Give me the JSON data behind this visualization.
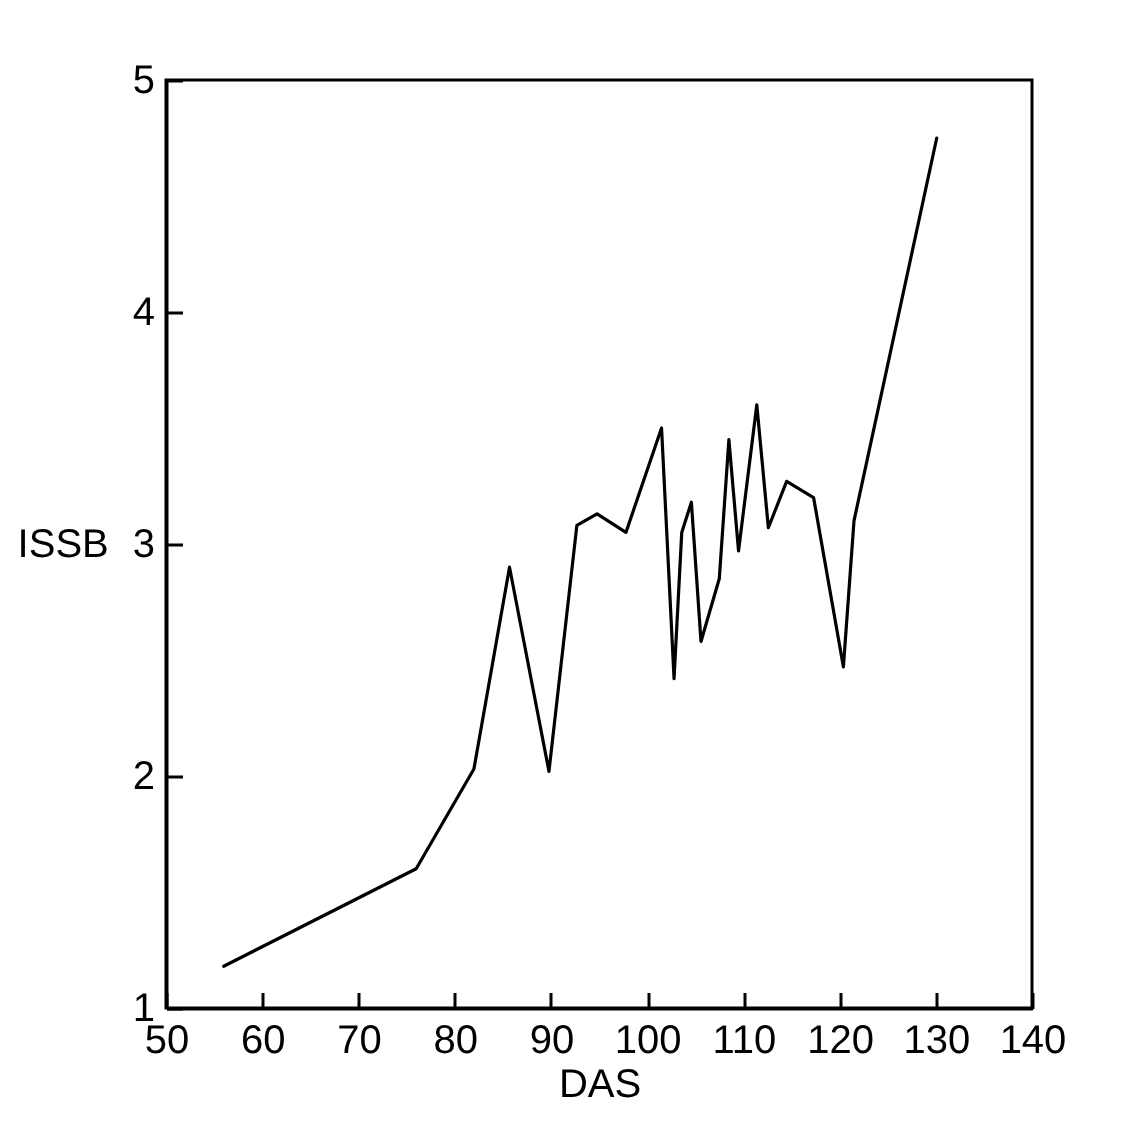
{
  "chart_data": {
    "type": "line",
    "xlabel": "DAS",
    "ylabel": "ISSB",
    "x": [
      56,
      76,
      82,
      85.7,
      89.8,
      92.7,
      94.8,
      97.8,
      101.5,
      102.8,
      103.6,
      104.6,
      105.6,
      107.5,
      108.5,
      109.5,
      111.4,
      112.6,
      114.5,
      117.3,
      120.4,
      121.5,
      130.1
    ],
    "series": [
      {
        "color": "#000000",
        "values": [
          1.18,
          1.6,
          2.03,
          2.9,
          2.02,
          3.08,
          3.13,
          3.05,
          3.5,
          2.42,
          3.05,
          3.18,
          2.58,
          2.85,
          3.45,
          2.97,
          3.6,
          3.07,
          3.27,
          3.2,
          2.47,
          3.1,
          4.75
        ]
      }
    ],
    "xlim": [
      50,
      140
    ],
    "xticks": [
      50,
      60,
      70,
      80,
      90,
      100,
      110,
      120,
      130,
      140
    ],
    "ylim": [
      1,
      5
    ],
    "yticks": [
      1,
      2,
      3,
      4,
      5
    ],
    "grid": false,
    "marker": "none",
    "line_style": "solid"
  }
}
